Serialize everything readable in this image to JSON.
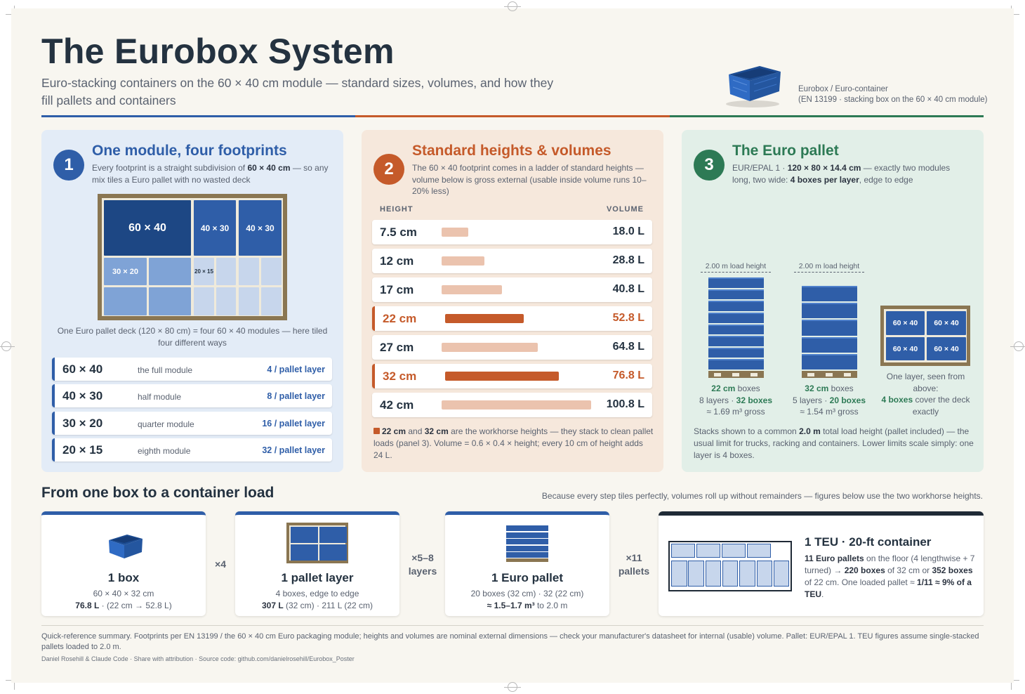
{
  "header": {
    "title": "The Eurobox System",
    "subtitle": "Euro-stacking containers on the 60 × 40 cm module — standard sizes, volumes, and how they fill pallets and containers",
    "hero_caption_line1": "Eurobox / Euro-container",
    "hero_caption_line2": "(EN 13199 · stacking box on the 60 × 40 cm module)"
  },
  "colors": {
    "blue": "#2f5ea8",
    "orange": "#c55a2a",
    "green": "#2d7a55",
    "pallet_wood": "#8a7652",
    "dark": "#1f2a36"
  },
  "panel1": {
    "number": "1",
    "title": "One module, four footprints",
    "desc_pre": "Every footprint is a straight subdivision of ",
    "desc_bold": "60 × 40 cm",
    "desc_post": " — so any mix tiles a Euro pallet with no wasted deck",
    "tiles": {
      "big": "60 × 40",
      "half_a": "40 × 30",
      "half_b": "40 × 30",
      "quarter": "30 × 20",
      "eighth": "20 × 15"
    },
    "deck_caption": "One Euro pallet deck (120 × 80 cm) = four 60 × 40 modules — here tiled four different ways",
    "footprints": [
      {
        "size": "60 × 40",
        "desc": "the full module",
        "count": "4 / pallet layer"
      },
      {
        "size": "40 × 30",
        "desc": "half module",
        "count": "8 / pallet layer"
      },
      {
        "size": "30 × 20",
        "desc": "quarter module",
        "count": "16 / pallet layer"
      },
      {
        "size": "20 × 15",
        "desc": "eighth module",
        "count": "32 / pallet layer"
      }
    ]
  },
  "panel2": {
    "number": "2",
    "title": "Standard heights & volumes",
    "desc": "The 60 × 40 footprint comes in a ladder of standard heights — volume below is gross external (usable inside volume runs 10–20% less)",
    "col_height": "HEIGHT",
    "col_volume": "VOLUME",
    "rows": [
      {
        "height": "7.5 cm",
        "volume": "18.0 L",
        "liters": 18.0,
        "highlight": false
      },
      {
        "height": "12 cm",
        "volume": "28.8 L",
        "liters": 28.8,
        "highlight": false
      },
      {
        "height": "17 cm",
        "volume": "40.8 L",
        "liters": 40.8,
        "highlight": false
      },
      {
        "height": "22 cm",
        "volume": "52.8 L",
        "liters": 52.8,
        "highlight": true
      },
      {
        "height": "27 cm",
        "volume": "64.8 L",
        "liters": 64.8,
        "highlight": false
      },
      {
        "height": "32 cm",
        "volume": "76.8 L",
        "liters": 76.8,
        "highlight": true
      },
      {
        "height": "42 cm",
        "volume": "100.8 L",
        "liters": 100.8,
        "highlight": false
      }
    ],
    "note_b1": "22 cm",
    "note_t1": " and ",
    "note_b2": "32 cm",
    "note_t2": " are the workhorse heights — they stack to clean pallet loads (panel 3). Volume = 0.6 × 0.4 × height; every 10 cm of height adds 24 L."
  },
  "panel3": {
    "number": "3",
    "title": "The Euro pallet",
    "desc_pre": "EUR/EPAL 1 · ",
    "desc_bold1": "120 × 80 × 14.4 cm",
    "desc_mid": " — exactly two modules long, two wide: ",
    "desc_bold2": "4 boxes per layer",
    "desc_post": ", edge to edge",
    "stacks": [
      {
        "dim_label": "2.00 m load height",
        "layers": 8,
        "height_bold": "22 cm",
        "height_text": " boxes",
        "line2_pre": "8 layers · ",
        "line2_bold": "32 boxes",
        "line3": "≈ 1.69 m³ gross"
      },
      {
        "dim_label": "2.00 m load height",
        "layers": 5,
        "height_bold": "32 cm",
        "height_text": " boxes",
        "line2_pre": "5 layers · ",
        "line2_bold": "20 boxes",
        "line3": "≈ 1.54 m³ gross"
      }
    ],
    "top_tiles": [
      "60 × 40",
      "60 × 40",
      "60 × 40",
      "60 × 40"
    ],
    "top_caption_line1": "One layer, seen from above:",
    "top_caption_bold": "4 boxes",
    "top_caption_post": " cover the deck exactly",
    "note_pre": "Stacks shown to a common ",
    "note_bold": "2.0 m",
    "note_post": " total load height (pallet included) — the usual limit for trucks, racking and containers. Lower limits scale simply: one layer is 4 boxes."
  },
  "rollup": {
    "title": "From one box to a container load",
    "note": "Because every step tiles perfectly, volumes roll up without remainders — figures below use the two workhorse heights.",
    "cards": [
      {
        "name": "1 box",
        "line1": "60 × 40 × 32 cm",
        "line2_bold": "76.8 L",
        "line2_post": " · (22 cm → 52.8 L)"
      },
      {
        "name": "1 pallet layer",
        "line1": "4 boxes, edge to edge",
        "line2_bold": "307 L",
        "line2_post": " (32 cm) · 211 L (22 cm)"
      },
      {
        "name": "1 Euro pallet",
        "line1": "20 boxes (32 cm) · 32 (22 cm)",
        "line2_bold": "≈ 1.5–1.7 m³",
        "line2_post": " to 2.0 m"
      }
    ],
    "mult1": "×4",
    "mult2_a": "×5–8",
    "mult2_b": "layers",
    "mult3_a": "×11",
    "mult3_b": "pallets",
    "teu_title": "1 TEU · 20-ft container",
    "teu_b1": "11 Euro pallets",
    "teu_t1": " on the floor (4 lengthwise + 7 turned) → ",
    "teu_b2": "220 boxes",
    "teu_t2": " of 32 cm or ",
    "teu_b3": "352 boxes",
    "teu_t3": " of 22 cm. One loaded pallet ≈ ",
    "teu_b4": "1/11 ≈ 9% of a TEU",
    "teu_t4": "."
  },
  "footer": {
    "text": "Quick-reference summary. Footprints per EN 13199 / the 60 × 40 cm Euro packaging module; heights and volumes are nominal external dimensions — check your manufacturer's datasheet for internal (usable) volume. Pallet: EUR/EPAL 1. TEU figures assume single-stacked pallets loaded to 2.0 m.",
    "credit": "Daniel Rosehill & Claude Code · Share with attribution · Source code: github.com/danielrosehill/Eurobox_Poster"
  }
}
